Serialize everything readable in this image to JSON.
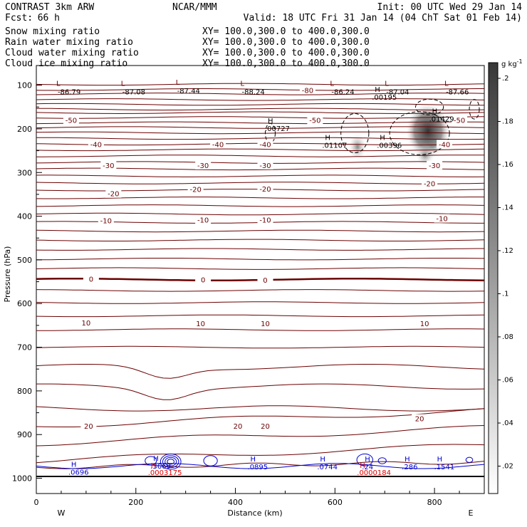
{
  "header": {
    "title": "CONTRAST  3km ARW",
    "source": "NCAR/MMM",
    "init": "Init: 00 UTC Wed 29 Jan 14",
    "fcst_label": "Fcst:",
    "fcst_value": "66 h",
    "valid": "Valid: 18 UTC Fri 31 Jan 14 (04 ChT Sat 01 Feb 14)"
  },
  "fields": [
    {
      "name": "Snow mixing ratio",
      "xy": "XY= 100.0,300.0 to 400.0,300.0",
      "color": "#000000"
    },
    {
      "name": "Rain water mixing ratio",
      "xy": "XY= 100.0,300.0 to 400.0,300.0",
      "color": "#dd0000"
    },
    {
      "name": "Cloud water mixing ratio",
      "xy": "XY= 100.0,300.0 to 400.0,300.0",
      "color": "#0000cc"
    },
    {
      "name": "Cloud ice mixing ratio",
      "xy": "XY= 100.0,300.0 to 400.0,300.0",
      "color": "#000000"
    }
  ],
  "chart_data": {
    "type": "contour",
    "xlabel": "Distance (km)",
    "ylabel": "Pressure (hPa)",
    "x_ticks": [
      0,
      200,
      400,
      600,
      800
    ],
    "x_range": [
      0,
      900
    ],
    "y_ticks": [
      100,
      200,
      300,
      400,
      500,
      600,
      700,
      800,
      900,
      1000
    ],
    "y_range": [
      55,
      1035
    ],
    "direction_left": "W",
    "direction_right": "E",
    "colorbar": {
      "unit": "g kg",
      "unit_exp": "-1",
      "ticks": [
        ".02",
        ".04",
        ".06",
        ".08",
        ".1",
        ".12",
        ".14",
        ".16",
        ".18",
        ".2"
      ],
      "min": 0,
      "max": 0.2
    },
    "temperature_labels": [
      {
        "text": "-50",
        "x": 70,
        "p": 180
      },
      {
        "text": "-50",
        "x": 560,
        "p": 180
      },
      {
        "text": "-50",
        "x": 850,
        "p": 180
      },
      {
        "text": "-40",
        "x": 120,
        "p": 235
      },
      {
        "text": "-40",
        "x": 365,
        "p": 235
      },
      {
        "text": "-40",
        "x": 460,
        "p": 235
      },
      {
        "text": "-40",
        "x": 820,
        "p": 235
      },
      {
        "text": "-30",
        "x": 145,
        "p": 283
      },
      {
        "text": "-30",
        "x": 335,
        "p": 283
      },
      {
        "text": "-30",
        "x": 460,
        "p": 283
      },
      {
        "text": "-30",
        "x": 800,
        "p": 283
      },
      {
        "text": "-20",
        "x": 155,
        "p": 348
      },
      {
        "text": "-20",
        "x": 320,
        "p": 338
      },
      {
        "text": "-20",
        "x": 460,
        "p": 337
      },
      {
        "text": "-20",
        "x": 790,
        "p": 325
      },
      {
        "text": "-10",
        "x": 140,
        "p": 410
      },
      {
        "text": "-10",
        "x": 335,
        "p": 408
      },
      {
        "text": "-10",
        "x": 460,
        "p": 408
      },
      {
        "text": "-10",
        "x": 815,
        "p": 405
      },
      {
        "text": "0",
        "x": 110,
        "p": 543
      },
      {
        "text": "0",
        "x": 335,
        "p": 545
      },
      {
        "text": "0",
        "x": 460,
        "p": 546
      },
      {
        "text": "10",
        "x": 100,
        "p": 644
      },
      {
        "text": "10",
        "x": 330,
        "p": 645
      },
      {
        "text": "10",
        "x": 460,
        "p": 645
      },
      {
        "text": "10",
        "x": 780,
        "p": 645
      },
      {
        "text": "20",
        "x": 105,
        "p": 880
      },
      {
        "text": "20",
        "x": 405,
        "p": 880
      },
      {
        "text": "20",
        "x": 460,
        "p": 880
      },
      {
        "text": "20",
        "x": 770,
        "p": 863
      },
      {
        "text": "-80",
        "x": 545,
        "p": 111
      }
    ],
    "lows": [
      {
        "label": "L",
        "value": "-86.79",
        "x": 40,
        "p": 85
      },
      {
        "label": "L",
        "value": "-87.08",
        "x": 170,
        "p": 85
      },
      {
        "label": "L",
        "value": "-87.44",
        "x": 280,
        "p": 83
      },
      {
        "label": "L",
        "value": "-88.24",
        "x": 410,
        "p": 85
      },
      {
        "label": "L",
        "value": "-86.24",
        "x": 590,
        "p": 85
      },
      {
        "label": "L",
        "value": "-87.04",
        "x": 700,
        "p": 85
      },
      {
        "label": "L",
        "value": "-87.66",
        "x": 820,
        "p": 85
      }
    ],
    "snow_highs": [
      {
        "label": "H",
        "value": ".00195",
        "x": 680,
        "p": 115
      },
      {
        "label": "H",
        "value": ".01429",
        "x": 795,
        "p": 165
      },
      {
        "label": "H",
        "value": ".00727",
        "x": 465,
        "p": 187
      },
      {
        "label": "H",
        "value": ".01107",
        "x": 580,
        "p": 225
      },
      {
        "label": "H",
        "value": ".00396",
        "x": 690,
        "p": 225
      }
    ],
    "cloud_water_highs": [
      {
        "label": "H",
        "value": ".0696",
        "x": 70,
        "p": 974
      },
      {
        "label": "H",
        "value": ".3669",
        "x": 235,
        "p": 960
      },
      {
        "label": "H",
        "value": ".0895",
        "x": 430,
        "p": 962
      },
      {
        "label": "H",
        "value": ".0744",
        "x": 570,
        "p": 962
      },
      {
        "label": "H",
        "value": ".24",
        "x": 660,
        "p": 962
      },
      {
        "label": "H",
        "value": ".286",
        "x": 740,
        "p": 962
      },
      {
        "label": "H",
        "value": ".1541",
        "x": 805,
        "p": 962
      }
    ],
    "rain_highs": [
      {
        "label": "H",
        "value": ".0003175",
        "x": 230,
        "p": 976
      },
      {
        "label": "H",
        "value": ".0000184",
        "x": 650,
        "p": 976
      }
    ]
  }
}
